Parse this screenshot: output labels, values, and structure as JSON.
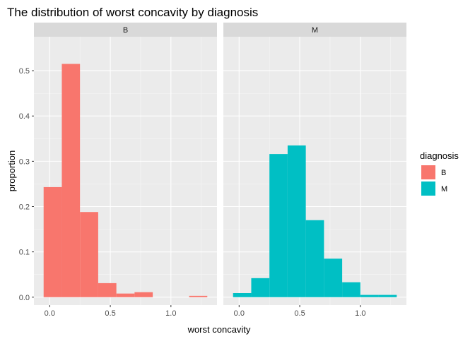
{
  "chart_data": {
    "type": "bar",
    "title": "The distribution of worst concavity by diagnosis",
    "xlabel": "worst concavity",
    "ylabel": "proportion",
    "xlim": [
      -0.13,
      1.38
    ],
    "ylim": [
      -0.0175,
      0.575
    ],
    "x_ticks": [
      0.0,
      0.5,
      1.0
    ],
    "x_tick_labels": [
      "0.0",
      "0.5",
      "1.0"
    ],
    "y_ticks": [
      0.0,
      0.1,
      0.2,
      0.3,
      0.4,
      0.5
    ],
    "y_tick_labels": [
      "0.0",
      "0.1",
      "0.2",
      "0.3",
      "0.4",
      "0.5"
    ],
    "bin_width": 0.15,
    "grid": true,
    "legend": {
      "title": "diagnosis",
      "position": "right",
      "entries": [
        {
          "label": "B",
          "color": "#F8766D"
        },
        {
          "label": "M",
          "color": "#00BFC4"
        }
      ]
    },
    "facets": [
      {
        "label": "B",
        "color": "#F8766D",
        "bars": [
          {
            "x0": -0.05,
            "x1": 0.1,
            "value": 0.243
          },
          {
            "x0": 0.1,
            "x1": 0.25,
            "value": 0.515
          },
          {
            "x0": 0.25,
            "x1": 0.4,
            "value": 0.188
          },
          {
            "x0": 0.4,
            "x1": 0.55,
            "value": 0.031
          },
          {
            "x0": 0.55,
            "x1": 0.7,
            "value": 0.008
          },
          {
            "x0": 0.7,
            "x1": 0.85,
            "value": 0.011
          },
          {
            "x0": 0.85,
            "x1": 1.0,
            "value": 0.0
          },
          {
            "x0": 1.0,
            "x1": 1.15,
            "value": 0.0
          },
          {
            "x0": 1.15,
            "x1": 1.3,
            "value": 0.003
          }
        ]
      },
      {
        "label": "M",
        "color": "#00BFC4",
        "bars": [
          {
            "x0": -0.05,
            "x1": 0.1,
            "value": 0.009
          },
          {
            "x0": 0.1,
            "x1": 0.25,
            "value": 0.042
          },
          {
            "x0": 0.25,
            "x1": 0.4,
            "value": 0.316
          },
          {
            "x0": 0.4,
            "x1": 0.55,
            "value": 0.335
          },
          {
            "x0": 0.55,
            "x1": 0.7,
            "value": 0.17
          },
          {
            "x0": 0.7,
            "x1": 0.85,
            "value": 0.085
          },
          {
            "x0": 0.85,
            "x1": 1.0,
            "value": 0.033
          },
          {
            "x0": 1.0,
            "x1": 1.15,
            "value": 0.005
          },
          {
            "x0": 1.15,
            "x1": 1.3,
            "value": 0.005
          }
        ]
      }
    ]
  }
}
